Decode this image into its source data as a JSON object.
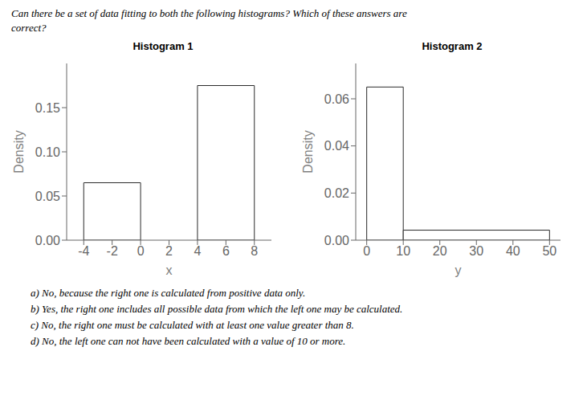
{
  "title": "Can there be a set of data fitting to both the following histograms?  Which of these answers are\ncorrect?",
  "annotations": [
    "a) No, because the right one is calculated from positive data only.",
    "b) Yes, the right one includes all possible data from which the left one may be calculated.",
    "c) No, the right one must be calculated with at least one value greater than 8.",
    "d) No, the left one can not have been calculated with a value of 10 or more."
  ],
  "chart_data": [
    {
      "type": "histogram",
      "title": "Histogram 1",
      "xlabel": "x",
      "ylabel": "Density",
      "bins": [
        -4,
        0,
        4,
        8
      ],
      "values": [
        0.065,
        null,
        0.175
      ],
      "color": "#2b2b2b",
      "xlim": [
        -5.2,
        9.2
      ],
      "ylim": [
        0,
        0.2
      ],
      "xticks": [
        -4,
        -2,
        0,
        2,
        4,
        6,
        8
      ],
      "yticks": [
        {
          "value": 0,
          "label": "0.00"
        },
        {
          "value": 0.05,
          "label": "0.05"
        },
        {
          "value": 0.1,
          "label": "0.10"
        },
        {
          "value": 0.15,
          "label": "0.15"
        }
      ],
      "grid": false
    },
    {
      "type": "histogram",
      "title": "Histogram 2",
      "xlabel": "y",
      "ylabel": "Density",
      "bins": [
        0,
        10,
        50
      ],
      "values": [
        0.065,
        0.00425
      ],
      "color": "#2b2b2b",
      "xlim": [
        -3,
        53
      ],
      "ylim": [
        0,
        0.075
      ],
      "xticks": [
        0,
        10,
        20,
        30,
        40,
        50
      ],
      "yticks": [
        {
          "value": 0,
          "label": "0.00"
        },
        {
          "value": 0.02,
          "label": "0.02"
        },
        {
          "value": 0.04,
          "label": "0.04"
        },
        {
          "value": 0.06,
          "label": "0.06"
        }
      ],
      "grid": false
    }
  ]
}
